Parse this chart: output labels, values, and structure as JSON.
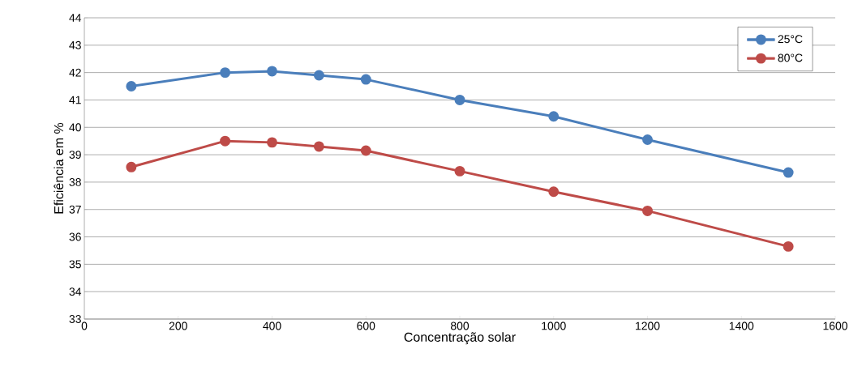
{
  "chart_data": {
    "type": "line",
    "xlabel": "Concentração solar",
    "ylabel": "Eficiência em %",
    "x": [
      100,
      300,
      400,
      500,
      600,
      800,
      1000,
      1200,
      1500
    ],
    "series": [
      {
        "name": "25°C",
        "color": "#4a7ebb",
        "values": [
          41.5,
          42.0,
          42.05,
          41.9,
          41.75,
          41.0,
          40.4,
          39.55,
          38.35
        ]
      },
      {
        "name": "80°C",
        "color": "#be4b48",
        "values": [
          38.55,
          39.5,
          39.45,
          39.3,
          39.15,
          38.4,
          37.65,
          36.95,
          35.65
        ]
      }
    ],
    "xlim": [
      0,
      1600
    ],
    "xticks": [
      0,
      200,
      400,
      600,
      800,
      1000,
      1200,
      1400,
      1600
    ],
    "ylim": [
      33,
      44
    ],
    "yticks": [
      33,
      34,
      35,
      36,
      37,
      38,
      39,
      40,
      41,
      42,
      43,
      44
    ],
    "grid": "y",
    "legend": "top right",
    "marker": "circle",
    "line_style": "solid"
  }
}
